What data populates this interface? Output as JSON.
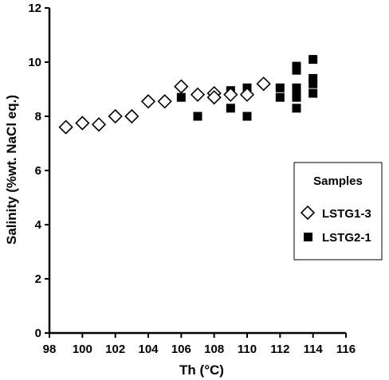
{
  "chart_data": {
    "type": "scatter",
    "title": "",
    "xlabel": "Th (°C)",
    "ylabel": "Salinity (%wt. NaCl eq.)",
    "xlim": [
      98,
      116
    ],
    "ylim": [
      0,
      12
    ],
    "x_ticks": [
      "98",
      "100",
      "102",
      "104",
      "106",
      "108",
      "110",
      "112",
      "114",
      "116"
    ],
    "y_ticks": [
      "0",
      "2",
      "4",
      "6",
      "8",
      "10",
      "12"
    ],
    "grid": false,
    "legend": {
      "title": "Samples",
      "position": "right"
    },
    "series": [
      {
        "name": "LSTG1-3",
        "marker": "open-diamond",
        "color": "#000000",
        "points": [
          [
            99,
            7.6
          ],
          [
            100,
            7.75
          ],
          [
            101,
            7.7
          ],
          [
            102,
            8.0
          ],
          [
            103,
            8.0
          ],
          [
            104,
            8.55
          ],
          [
            105,
            8.55
          ],
          [
            106,
            9.1
          ],
          [
            107,
            8.8
          ],
          [
            108,
            8.85
          ],
          [
            108,
            8.7
          ],
          [
            109,
            8.8
          ],
          [
            110,
            8.8
          ],
          [
            111,
            9.2
          ]
        ]
      },
      {
        "name": "LSTG2-1",
        "marker": "filled-square",
        "color": "#000000",
        "points": [
          [
            106,
            8.7
          ],
          [
            107,
            8.0
          ],
          [
            109,
            8.95
          ],
          [
            109,
            8.3
          ],
          [
            110,
            9.05
          ],
          [
            110,
            8.0
          ],
          [
            112,
            9.05
          ],
          [
            112,
            8.7
          ],
          [
            113,
            9.85
          ],
          [
            113,
            9.7
          ],
          [
            113,
            9.05
          ],
          [
            113,
            8.85
          ],
          [
            113,
            8.7
          ],
          [
            113,
            8.3
          ],
          [
            114,
            10.1
          ],
          [
            114,
            9.4
          ],
          [
            114,
            9.2
          ],
          [
            114,
            8.85
          ]
        ]
      }
    ]
  }
}
